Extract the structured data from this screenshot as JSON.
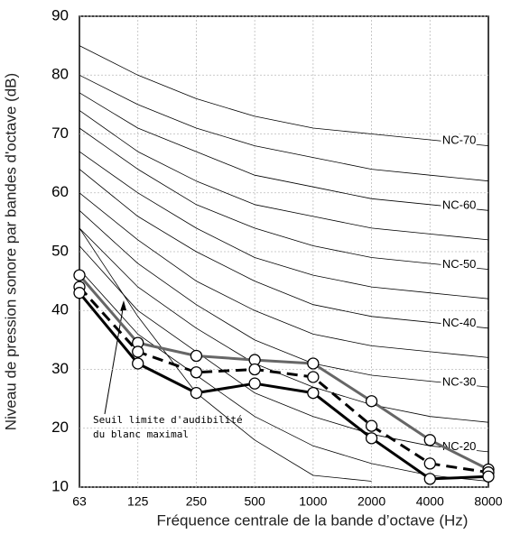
{
  "chart_data": {
    "type": "line",
    "xlabel": "Fréquence centrale de la bande d’octave (Hz)",
    "ylabel": "Niveau de pression sonore par bandes d'octave (dB)",
    "categories": [
      "63",
      "125",
      "250",
      "500",
      "1000",
      "2000",
      "4000",
      "8000"
    ],
    "ylim": [
      10,
      90
    ],
    "yticks": [
      10,
      20,
      30,
      40,
      50,
      60,
      70,
      80,
      90
    ],
    "grid": true,
    "annotation": [
      "Seuil limite d'audibilité",
      "du blanc maximal"
    ],
    "series": [
      {
        "color": "#000000",
        "values": [
          47,
          36,
          29,
          22,
          17,
          14,
          12,
          11
        ]
      },
      {
        "name": "NC-20",
        "color": "#000000",
        "values": [
          51,
          40,
          33,
          26,
          22,
          19,
          17,
          16
        ]
      },
      {
        "color": "#000000",
        "values": [
          54,
          44,
          37,
          31,
          27,
          24,
          22,
          21
        ]
      },
      {
        "name": "NC-30",
        "color": "#000000",
        "values": [
          57,
          48,
          41,
          35,
          31,
          29,
          28,
          27
        ]
      },
      {
        "color": "#000000",
        "values": [
          60,
          52,
          45,
          40,
          36,
          34,
          33,
          32
        ]
      },
      {
        "name": "NC-40",
        "color": "#000000",
        "values": [
          64,
          56,
          50,
          45,
          41,
          39,
          38,
          37
        ]
      },
      {
        "color": "#000000",
        "values": [
          67,
          60,
          54,
          49,
          46,
          44,
          43,
          42
        ]
      },
      {
        "name": "NC-50",
        "color": "#000000",
        "values": [
          71,
          64,
          58,
          54,
          51,
          49,
          48,
          47
        ]
      },
      {
        "color": "#000000",
        "values": [
          74,
          67,
          62,
          58,
          56,
          54,
          53,
          52
        ]
      },
      {
        "name": "NC-60",
        "color": "#000000",
        "values": [
          77,
          71,
          67,
          63,
          61,
          59,
          58,
          57
        ]
      },
      {
        "color": "#000000",
        "values": [
          80,
          75,
          71,
          68,
          66,
          64,
          63,
          62
        ]
      },
      {
        "name": "NC-70",
        "color": "#000000",
        "values": [
          85,
          80,
          76,
          73,
          71,
          70,
          69,
          68
        ]
      },
      {
        "color": "#000000",
        "values": [
          54,
          39,
          26,
          18,
          12,
          11,
          null,
          null
        ]
      },
      {
        "color": "#666666",
        "markers": true,
        "values": [
          46,
          34.5,
          32.3,
          31.6,
          31,
          24.6,
          18,
          13
        ]
      },
      {
        "color": "#000000",
        "markers": true,
        "dashed": true,
        "values": [
          44,
          33,
          29.5,
          30,
          28.7,
          20.4,
          14,
          12.5
        ]
      },
      {
        "color": "#000000",
        "markers": true,
        "values": [
          43,
          31,
          26,
          27.6,
          26,
          18.3,
          11.4,
          11.8
        ]
      }
    ]
  }
}
